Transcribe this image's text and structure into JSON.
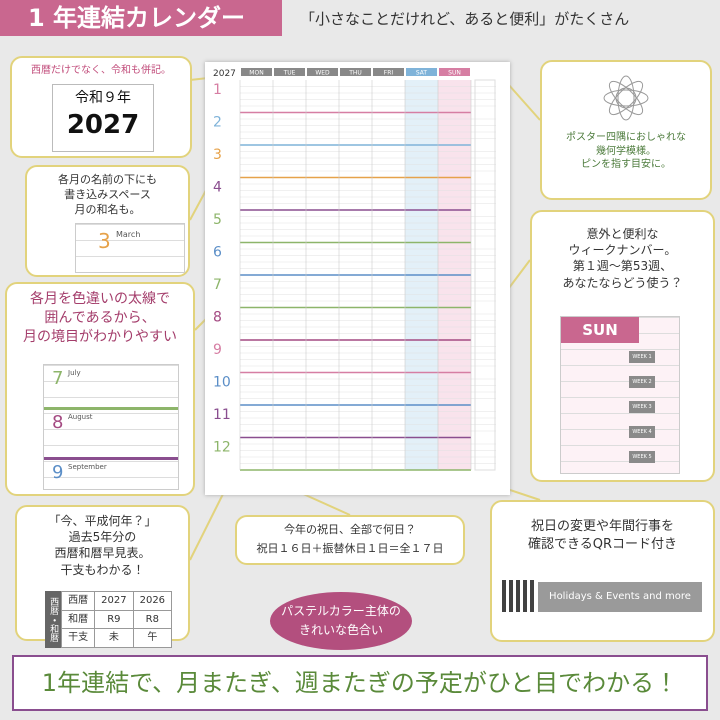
{
  "header": {
    "title": "1 年連結カレンダー",
    "tagline": "「小さなことだけれど、あると便利」がたくさん"
  },
  "calendar": {
    "year": "2027",
    "weekdays": [
      "MON",
      "TUE",
      "WED",
      "THU",
      "FRI",
      "SAT",
      "SUN"
    ],
    "months": [
      "1",
      "2",
      "3",
      "4",
      "5",
      "6",
      "7",
      "8",
      "9",
      "10",
      "11",
      "12"
    ]
  },
  "callouts": {
    "era": {
      "text": "西暦だけでなく、令和も併記。",
      "era_label": "令和９年",
      "year": "2027"
    },
    "month_names": {
      "lines": [
        "各月の名前の下にも",
        "書き込みスペース",
        "月の和名も。"
      ],
      "sample_month": "3",
      "sample_name": "March"
    },
    "borders": {
      "lines": [
        "各月を色違いの太線で",
        "囲んであるから、",
        "月の境目がわかりやすい"
      ],
      "months": [
        "7",
        "8",
        "9"
      ],
      "names": [
        "July",
        "August",
        "September"
      ]
    },
    "table": {
      "lines": [
        "「今、平成何年？」",
        "過去5年分の",
        "西暦和暦早見表。",
        "干支もわかる！"
      ],
      "side": "西暦・和暦",
      "rows": [
        [
          "西暦",
          "2027",
          "2026"
        ],
        [
          "和暦",
          "R9",
          "R8"
        ],
        [
          "干支",
          "未",
          "午"
        ]
      ]
    },
    "holidays": {
      "lines": [
        "今年の祝日、全部で何日？",
        "祝日１６日＋振替休日１日＝全１７日"
      ]
    },
    "pastel": {
      "lines": [
        "パステルカラー主体の",
        "きれいな色合い"
      ]
    },
    "qr": {
      "lines": [
        "祝日の変更や年間行事を",
        "確認できるQRコード付き"
      ],
      "button": "Holidays & Events and more"
    },
    "pattern": {
      "lines": [
        "ポスター四隅におしゃれな",
        "幾何学模様。",
        "ピンを指す目安に。"
      ]
    },
    "week": {
      "lines": [
        "意外と便利な",
        "ウィークナンバー。",
        "第１週〜第53週、",
        "あなたならどう使う？"
      ],
      "header": "SUN",
      "weeks": [
        "WEEK 1",
        "WEEK 2",
        "WEEK 3",
        "WEEK 4",
        "WEEK 5"
      ]
    }
  },
  "banner": "1年連結で、月またぎ、週またぎの予定がひと目でわかる！"
}
